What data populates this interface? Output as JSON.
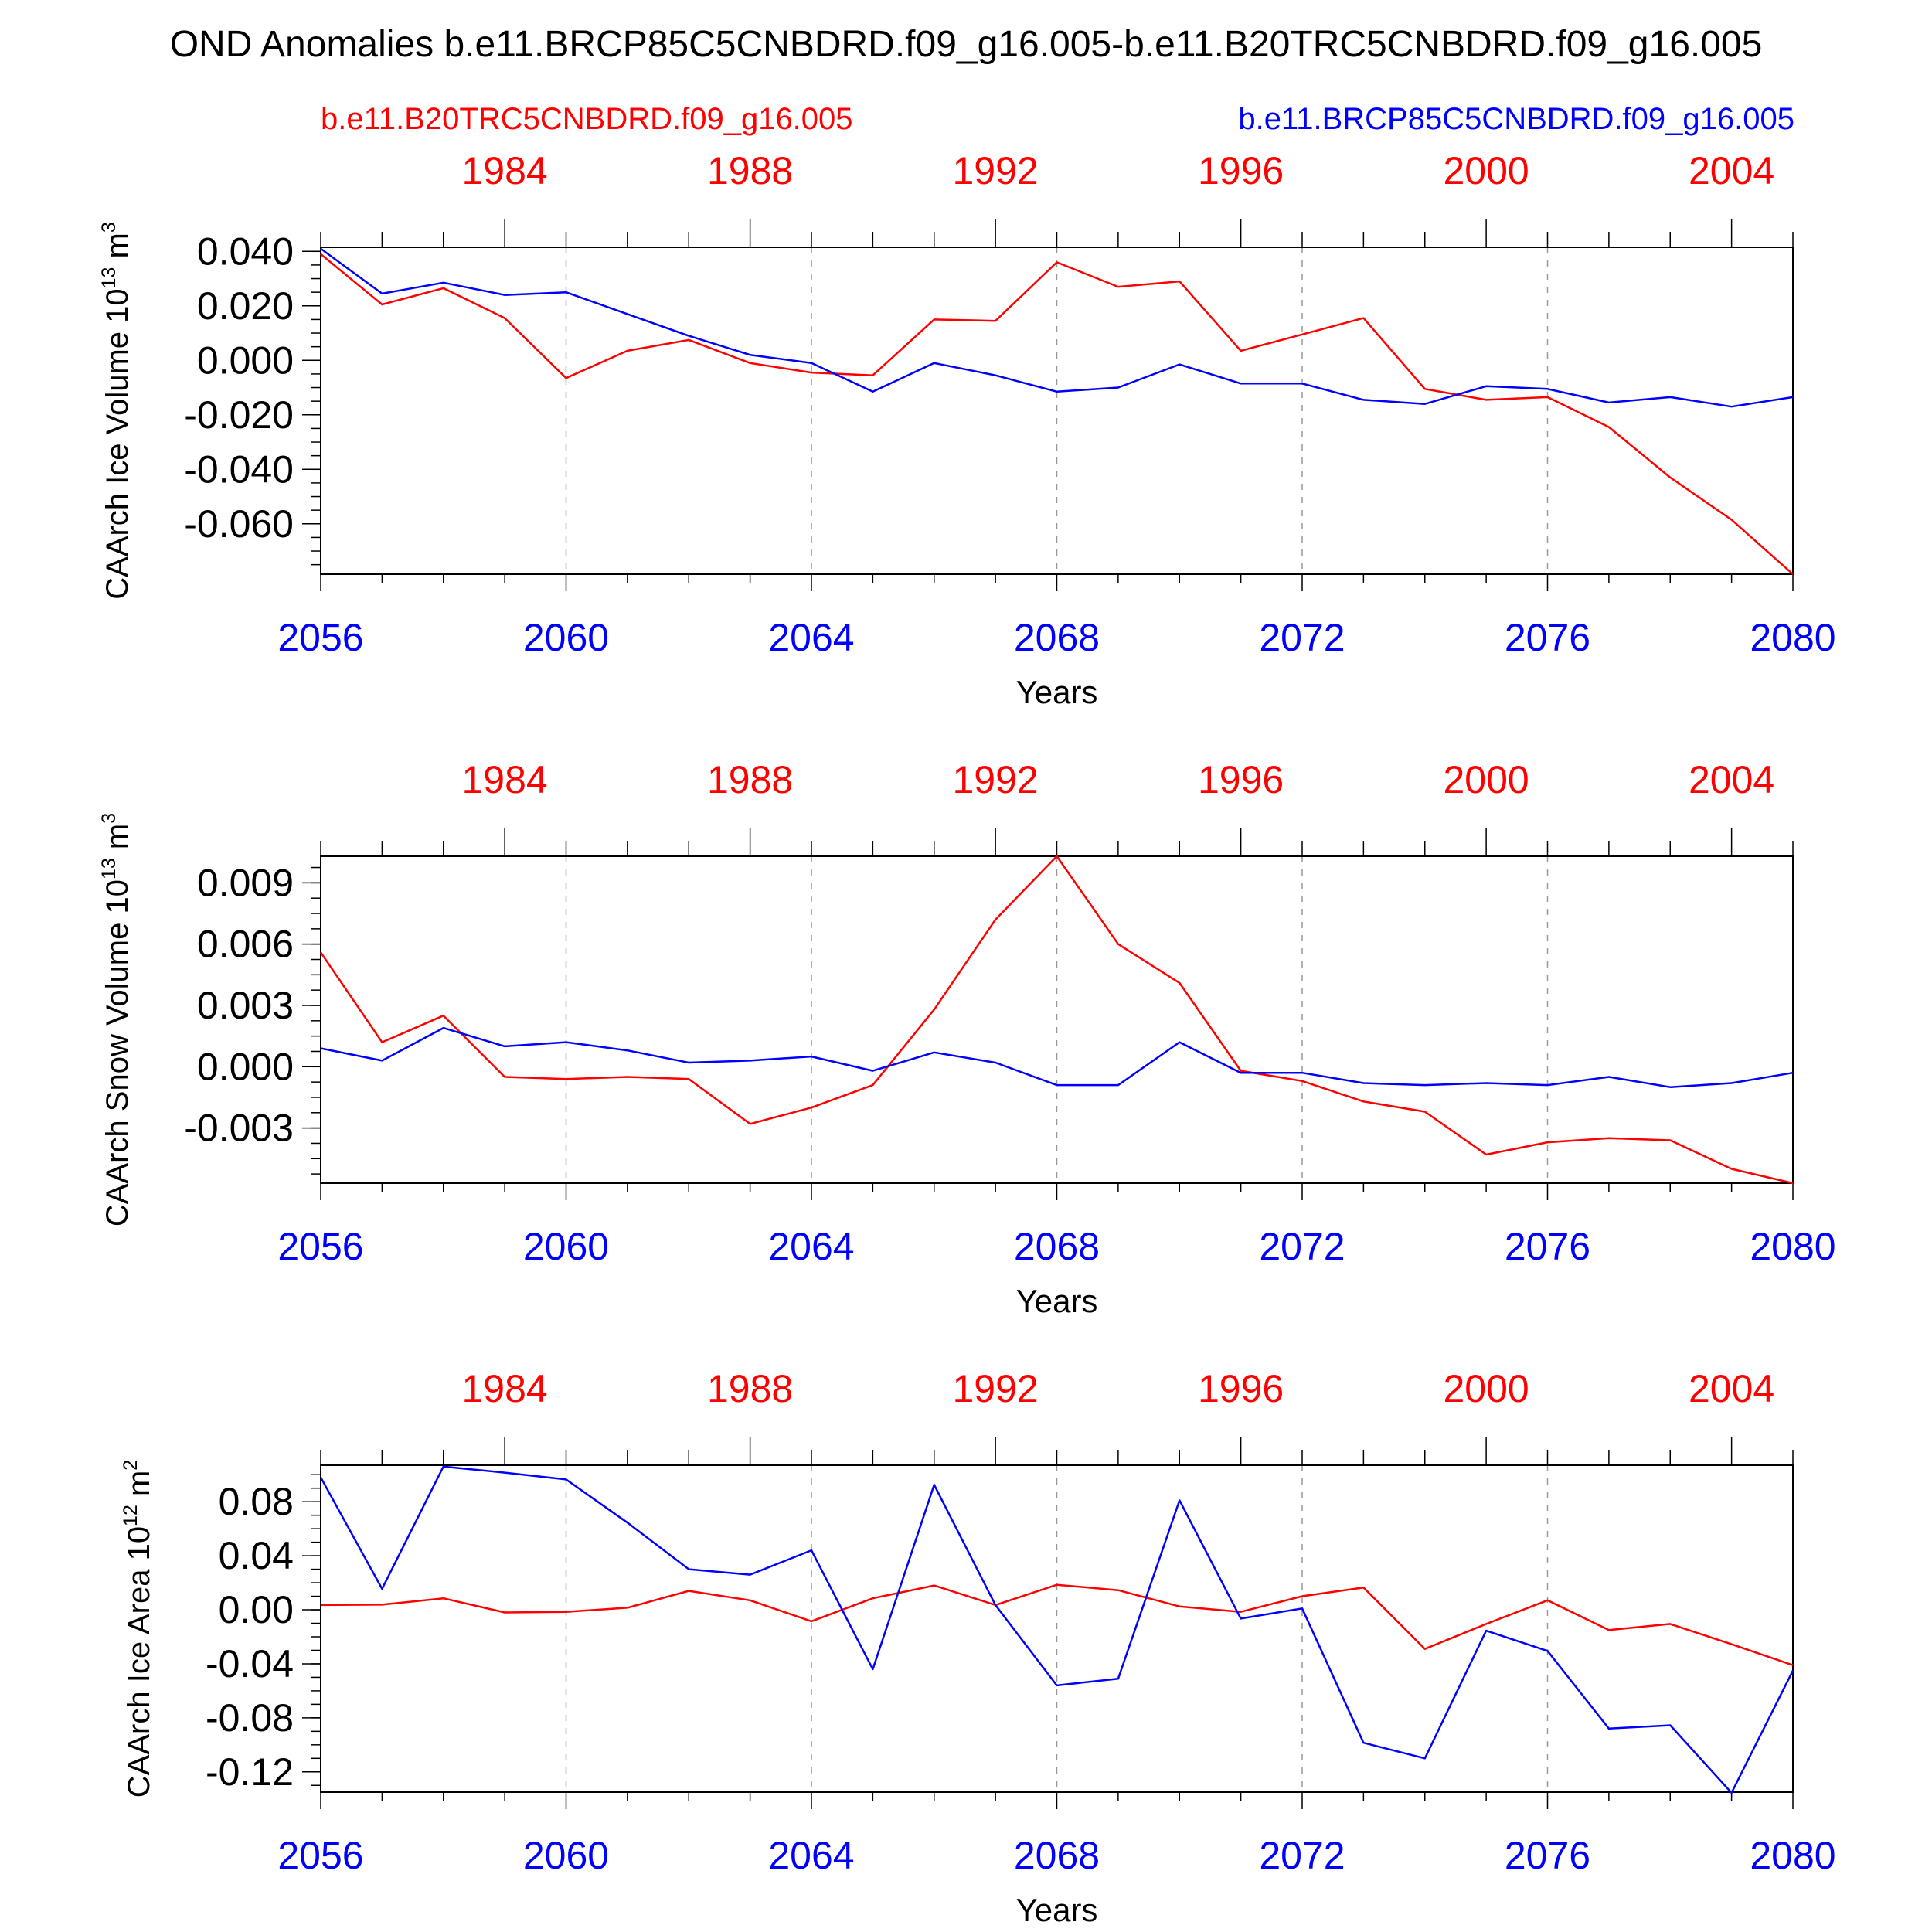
{
  "title": "OND Anomalies b.e11.BRCP85C5CNBDRD.f09_g16.005-b.e11.B20TRC5CNBDRD.f09_g16.005",
  "legend": {
    "left_label": "b.e11.B20TRC5CNBDRD.f09_g16.005",
    "right_label": "b.e11.BRCP85C5CNBDRD.f09_g16.005"
  },
  "colors": {
    "red": "#ff0000",
    "blue": "#0000ff",
    "frame": "#000000",
    "grid": "#999999"
  },
  "chart_data": [
    {
      "type": "line",
      "ylabel_main": "CAArch Ice Volume 10",
      "ylabel_exp": "13",
      "ylabel_unit": "m",
      "ylabel_unit_exp": "3",
      "xlabel": "Years",
      "ylim": [
        -0.0785,
        0.0415
      ],
      "yticks": [
        0.04,
        0.02,
        0.0,
        -0.02,
        -0.04,
        -0.06
      ],
      "ytick_labels": [
        "0.040",
        "0.020",
        "0.000",
        "-0.020",
        "-0.040",
        "-0.060"
      ],
      "yminor_step": 0.005,
      "xlim": [
        2056,
        2080
      ],
      "xticks_bottom": [
        2056,
        2060,
        2064,
        2068,
        2072,
        2076,
        2080
      ],
      "xticks_top": [
        1984,
        1988,
        1992,
        1996,
        2000,
        2004
      ],
      "top_year_offset": 75,
      "x": [
        2056,
        2057,
        2058,
        2059,
        2060,
        2061,
        2062,
        2063,
        2064,
        2065,
        2066,
        2067,
        2068,
        2069,
        2070,
        2071,
        2072,
        2073,
        2074,
        2075,
        2076,
        2077,
        2078,
        2079,
        2080
      ],
      "series": [
        {
          "color": "red",
          "values": [
            0.039,
            0.0205,
            0.0265,
            0.0155,
            -0.0065,
            0.0035,
            0.0075,
            -0.001,
            -0.0045,
            -0.0055,
            0.015,
            0.0145,
            0.036,
            0.027,
            0.029,
            0.0035,
            0.0095,
            0.0155,
            -0.0105,
            -0.0145,
            -0.0135,
            -0.0245,
            -0.043,
            -0.0585,
            -0.0785
          ]
        },
        {
          "color": "blue",
          "values": [
            0.041,
            0.0245,
            0.0285,
            0.024,
            0.025,
            0.017,
            0.009,
            0.002,
            -0.001,
            -0.0115,
            -0.001,
            -0.0055,
            -0.0115,
            -0.01,
            -0.0015,
            -0.0085,
            -0.0085,
            -0.0145,
            -0.016,
            -0.0095,
            -0.0105,
            -0.0155,
            -0.0135,
            -0.017,
            -0.0135
          ]
        }
      ]
    },
    {
      "type": "line",
      "ylabel_main": "CAArch Snow Volume 10",
      "ylabel_exp": "13",
      "ylabel_unit": "m",
      "ylabel_unit_exp": "3",
      "xlabel": "Years",
      "ylim": [
        -0.0057,
        0.0103
      ],
      "yticks": [
        0.009,
        0.006,
        0.003,
        0.0,
        -0.003
      ],
      "ytick_labels": [
        "0.009",
        "0.006",
        "0.003",
        "0.000",
        "-0.003"
      ],
      "yminor_step": 0.00075,
      "xlim": [
        2056,
        2080
      ],
      "xticks_bottom": [
        2056,
        2060,
        2064,
        2068,
        2072,
        2076,
        2080
      ],
      "xticks_top": [
        1984,
        1988,
        1992,
        1996,
        2000,
        2004
      ],
      "top_year_offset": 75,
      "x": [
        2056,
        2057,
        2058,
        2059,
        2060,
        2061,
        2062,
        2063,
        2064,
        2065,
        2066,
        2067,
        2068,
        2069,
        2070,
        2071,
        2072,
        2073,
        2074,
        2075,
        2076,
        2077,
        2078,
        2079,
        2080
      ],
      "series": [
        {
          "color": "red",
          "values": [
            0.0056,
            0.0012,
            0.0025,
            -0.0005,
            -0.0006,
            -0.0005,
            -0.0006,
            -0.0028,
            -0.002,
            -0.0009,
            0.0028,
            0.0072,
            0.0103,
            0.006,
            0.0041,
            -0.0002,
            -0.0007,
            -0.0017,
            -0.0022,
            -0.0043,
            -0.0037,
            -0.0035,
            -0.0036,
            -0.005,
            -0.0057
          ]
        },
        {
          "color": "blue",
          "values": [
            0.0009,
            0.0003,
            0.0019,
            0.001,
            0.0012,
            0.0008,
            0.0002,
            0.0003,
            0.0005,
            -0.0002,
            0.0007,
            0.0002,
            -0.0009,
            -0.0009,
            0.0012,
            -0.0003,
            -0.0003,
            -0.0008,
            -0.0009,
            -0.0008,
            -0.0009,
            -0.0005,
            -0.001,
            -0.0008,
            -0.0003
          ]
        }
      ]
    },
    {
      "type": "line",
      "ylabel_main": "CAArch Ice Area 10",
      "ylabel_exp": "12",
      "ylabel_unit": "m",
      "ylabel_unit_exp": "2",
      "xlabel": "Years",
      "ylim": [
        -0.135,
        0.107
      ],
      "yticks": [
        0.08,
        0.04,
        0.0,
        -0.04,
        -0.08,
        -0.12
      ],
      "ytick_labels": [
        "0.08",
        "0.04",
        "0.00",
        "-0.04",
        "-0.08",
        "-0.12"
      ],
      "yminor_step": 0.01,
      "xlim": [
        2056,
        2080
      ],
      "xticks_bottom": [
        2056,
        2060,
        2064,
        2068,
        2072,
        2076,
        2080
      ],
      "xticks_top": [
        1984,
        1988,
        1992,
        1996,
        2000,
        2004
      ],
      "top_year_offset": 75,
      "x": [
        2056,
        2057,
        2058,
        2059,
        2060,
        2061,
        2062,
        2063,
        2064,
        2065,
        2066,
        2067,
        2068,
        2069,
        2070,
        2071,
        2072,
        2073,
        2074,
        2075,
        2076,
        2077,
        2078,
        2079,
        2080
      ],
      "series": [
        {
          "color": "red",
          "values": [
            0.0035,
            0.0038,
            0.0085,
            -0.002,
            -0.0015,
            0.0015,
            0.014,
            0.007,
            -0.0085,
            0.0085,
            0.018,
            0.0035,
            0.0185,
            0.0145,
            0.0025,
            -0.0015,
            0.01,
            0.0165,
            -0.029,
            -0.0105,
            0.007,
            -0.015,
            -0.0105,
            -0.0255,
            -0.041
          ]
        },
        {
          "color": "blue",
          "values": [
            0.098,
            0.0155,
            0.106,
            0.1015,
            0.0965,
            0.0645,
            0.03,
            0.026,
            0.044,
            -0.044,
            0.0925,
            0.0035,
            -0.056,
            -0.051,
            0.081,
            -0.0065,
            0.001,
            -0.0985,
            -0.11,
            -0.0155,
            -0.0305,
            -0.088,
            -0.0855,
            -0.1355,
            -0.045
          ]
        }
      ]
    }
  ]
}
